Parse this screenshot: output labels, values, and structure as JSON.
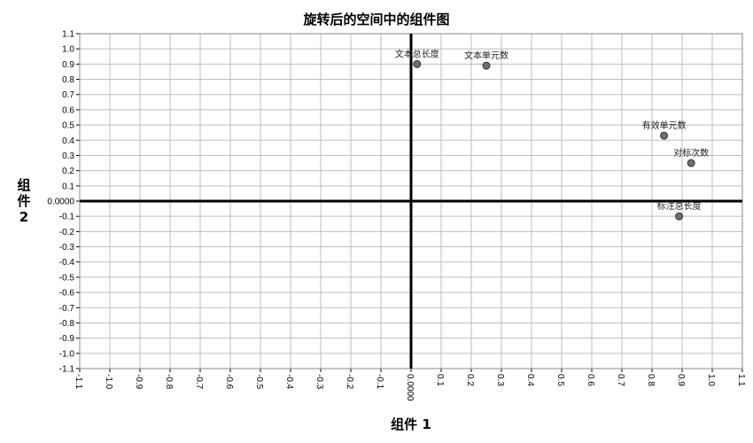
{
  "chart_data": {
    "type": "scatter",
    "title": "旋转后的空间中的组件图",
    "xlabel": "组件 1",
    "ylabel_chars": [
      "组",
      "件",
      "2"
    ],
    "xlim": [
      -1.1,
      1.1
    ],
    "ylim": [
      -1.1,
      1.1
    ],
    "grid": true,
    "x_ticks": [
      "-1.1",
      "-1.0",
      "-0.9",
      "-0.8",
      "-0.7",
      "-0.6",
      "-0.5",
      "-0.4",
      "-0.3",
      "-0.2",
      "-0.1",
      "0.0000",
      "0.1",
      "0.2",
      "0.3",
      "0.4",
      "0.5",
      "0.6",
      "0.7",
      "0.8",
      "0.9",
      "1.0",
      "1.1"
    ],
    "y_ticks": [
      "1.1",
      "1.0",
      "0.9",
      "0.8",
      "0.7",
      "0.6",
      "0.5",
      "0.4",
      "0.3",
      "0.2",
      "0.1",
      "0.0000",
      "-0.1",
      "-0.2",
      "-0.3",
      "-0.4",
      "-0.5",
      "-0.6",
      "-0.7",
      "-0.8",
      "-0.9",
      "-1.0",
      "-1.1"
    ],
    "points": [
      {
        "label": "文本总长度",
        "x": 0.02,
        "y": 0.9
      },
      {
        "label": "文本单元数",
        "x": 0.25,
        "y": 0.89
      },
      {
        "label": "有效单元数",
        "x": 0.84,
        "y": 0.43
      },
      {
        "label": "对标次数",
        "x": 0.93,
        "y": 0.25
      },
      {
        "label": "标注总长度",
        "x": 0.89,
        "y": -0.1
      }
    ],
    "colors": {
      "marker_fill": "#6e6e6e",
      "marker_stroke": "#333333",
      "grid": "#bdbdbd",
      "axis": "#000000"
    }
  }
}
